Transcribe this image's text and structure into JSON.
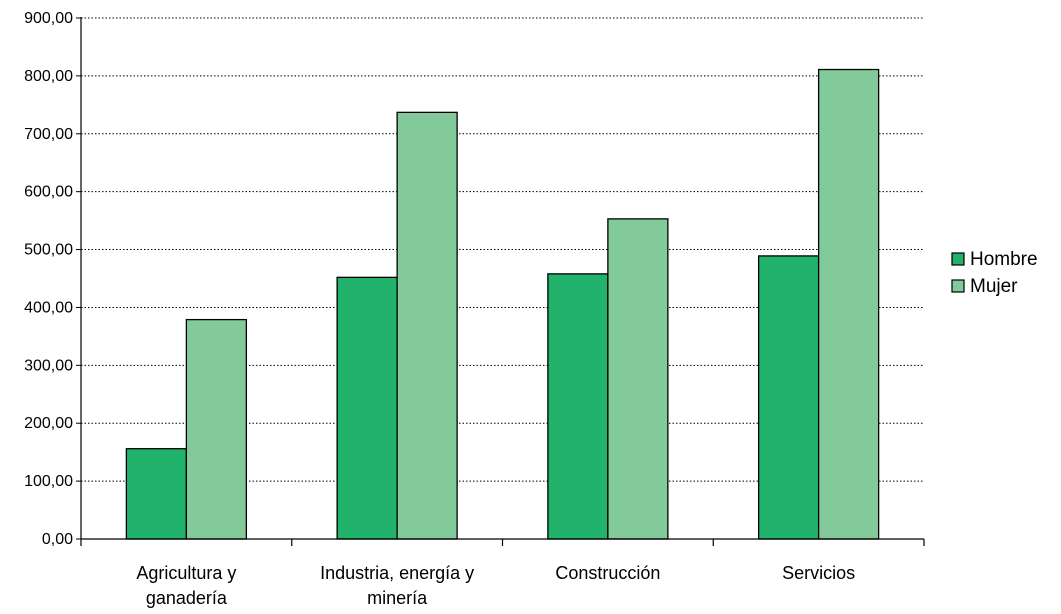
{
  "chart_data": {
    "type": "bar",
    "title": "",
    "xlabel": "",
    "ylabel": "",
    "categories": [
      [
        "Agricultura y",
        "ganadería"
      ],
      [
        "Industria, energía y",
        "minería"
      ],
      [
        "Construcción"
      ],
      [
        "Servicios"
      ]
    ],
    "series": [
      {
        "name": "Hombre",
        "values": [
          156,
          452,
          458,
          489
        ],
        "color": "#21B26B"
      },
      {
        "name": "Mujer",
        "values": [
          379,
          737,
          553,
          811
        ],
        "color": "#83CA9B"
      }
    ],
    "ylim": [
      0,
      900
    ],
    "yticks": [
      0,
      100,
      200,
      300,
      400,
      500,
      600,
      700,
      800,
      900
    ],
    "ytick_labels": [
      "0,00",
      "100,00",
      "200,00",
      "300,00",
      "400,00",
      "500,00",
      "600,00",
      "700,00",
      "800,00",
      "900,00"
    ],
    "grid": true,
    "grid_style": "dotted",
    "legend": "right"
  }
}
